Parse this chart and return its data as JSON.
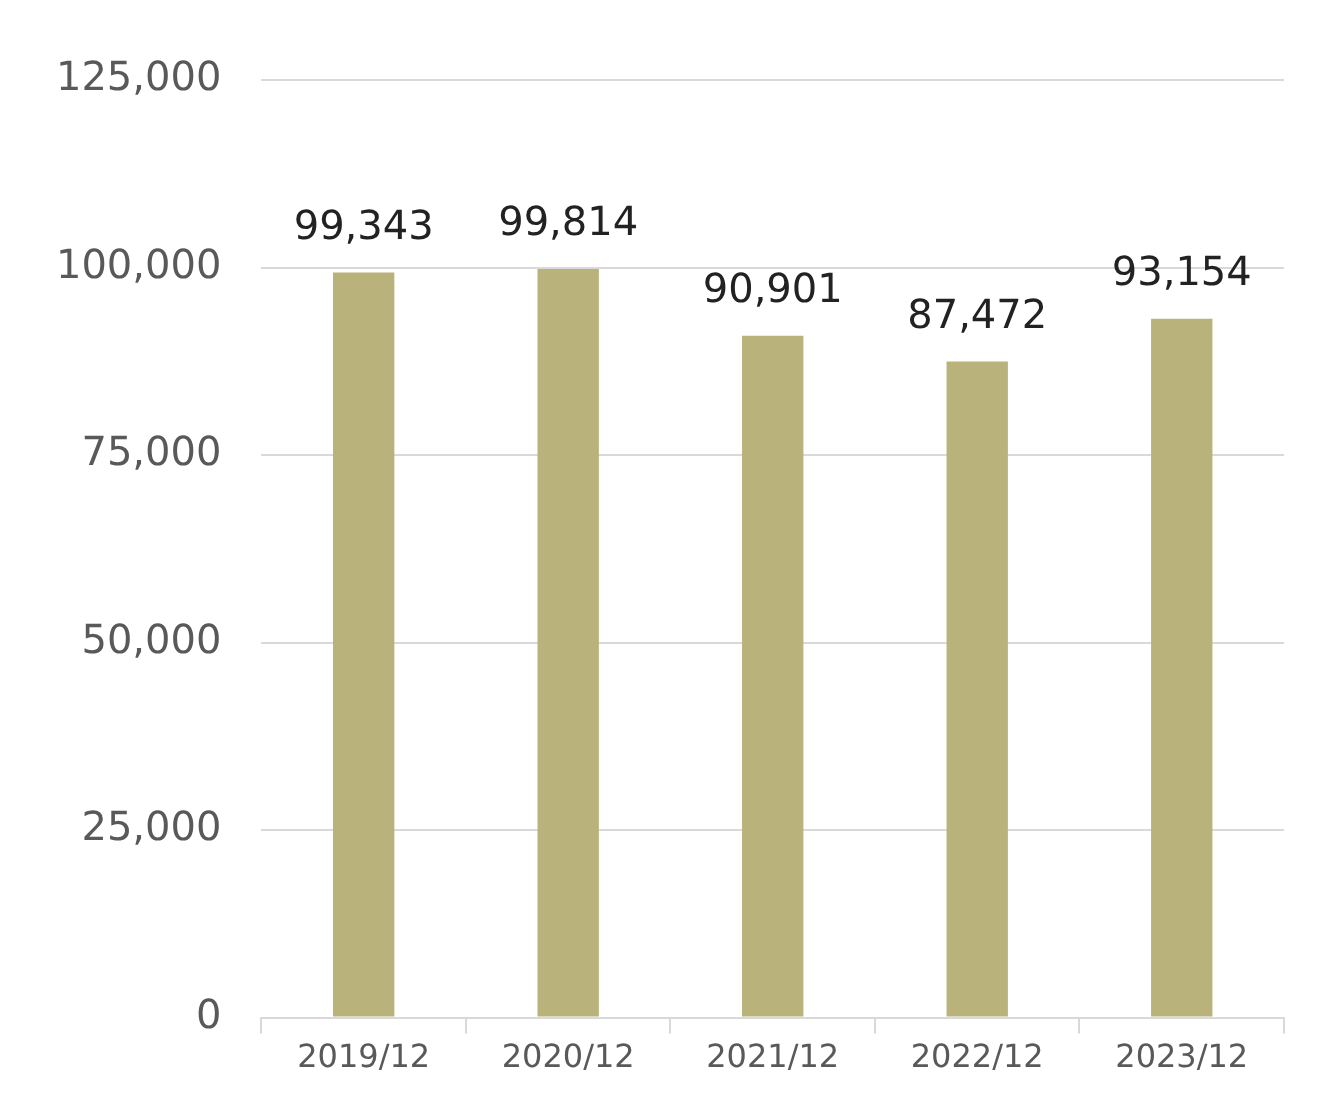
{
  "chart_data": {
    "type": "bar",
    "categories": [
      "2019/12",
      "2020/12",
      "2021/12",
      "2022/12",
      "2023/12"
    ],
    "values": [
      99343,
      99814,
      90901,
      87472,
      93154
    ],
    "value_labels": [
      "99,343",
      "99,814",
      "90,901",
      "87,472",
      "93,154"
    ],
    "color": "#b9b37b",
    "ylim": [
      0,
      125000
    ],
    "yticks": [
      0,
      {
        "value": 25000,
        "label": "25,000"
      },
      {
        "value": 50000,
        "label": "50,000"
      },
      {
        "value": 75000,
        "label": "75,000"
      },
      {
        "value": 100000,
        "label": "100,000"
      },
      {
        "value": 125000,
        "label": "125,000"
      }
    ],
    "grid": "y",
    "legend": false
  }
}
